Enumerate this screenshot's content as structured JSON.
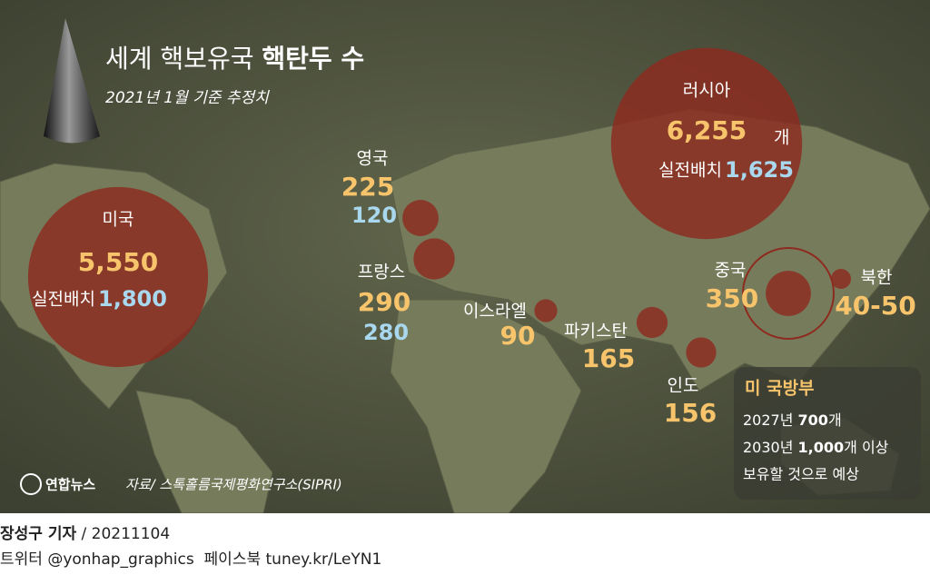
{
  "header": {
    "title": "세계 핵보유국",
    "title_bold": "핵탄두 수",
    "subtitle": "2021년 1월 기준 추정치"
  },
  "countries": {
    "usa": {
      "name": "미국",
      "total": {
        "value": 5550,
        "label": "5,550"
      },
      "deployed_text": "실전배치",
      "deployed": {
        "value": 1800,
        "label": "1,800"
      }
    },
    "russia": {
      "name": "러시아",
      "total": {
        "value": 6255,
        "label": "6,255"
      },
      "unit": "개",
      "deployed_text": "실전배치",
      "deployed": {
        "value": 1625,
        "label": "1,625"
      }
    },
    "uk": {
      "name": "영국",
      "total": 225,
      "deployed": 120
    },
    "france": {
      "name": "프랑스",
      "total": 290,
      "deployed": 280
    },
    "israel": {
      "name": "이스라엘",
      "total": 90
    },
    "pakistan": {
      "name": "파키스탄",
      "total": 165
    },
    "india": {
      "name": "인도",
      "total": 156
    },
    "china": {
      "name": "중국",
      "total": 350
    },
    "north_korea": {
      "name": "북한",
      "total": "40-50"
    }
  },
  "note": {
    "title": "미 국방부",
    "line1": [
      "2027년 ",
      "700",
      "개"
    ],
    "line2": [
      "2030년 ",
      "1,000",
      "개 이상"
    ],
    "line3": "보유할 것으로 예상"
  },
  "source": {
    "logo": "연합뉴스",
    "text": "자료/ 스톡홀름국제평화연구소(SIPRI)"
  },
  "footer": {
    "reporter": "장성구 기자",
    "date": "/ 20211104",
    "social": "트위터 @yonhap_graphics  페이스북 tuney.kr/LeYN1"
  }
}
